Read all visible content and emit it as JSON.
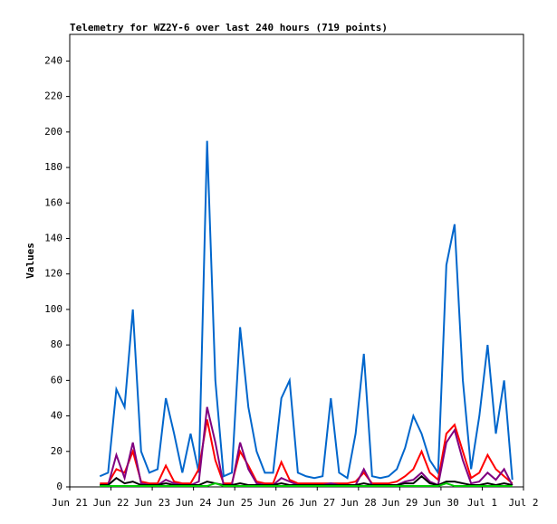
{
  "chart_data": {
    "type": "line",
    "title": "Telemetry for WZ2Y-6 over last 240 hours (719 points)",
    "y_label": "Values",
    "x": [
      0.73,
      0.93,
      1.13,
      1.33,
      1.53,
      1.73,
      1.93,
      2.13,
      2.33,
      2.53,
      2.73,
      2.93,
      3.13,
      3.33,
      3.53,
      3.73,
      3.93,
      4.13,
      4.33,
      4.53,
      4.73,
      4.93,
      5.13,
      5.33,
      5.53,
      5.73,
      5.93,
      6.13,
      6.33,
      6.53,
      6.73,
      6.93,
      7.13,
      7.33,
      7.53,
      7.73,
      7.93,
      8.13,
      8.33,
      8.53,
      8.73,
      8.93,
      9.13,
      9.33,
      9.53,
      9.73,
      9.93,
      10.13,
      10.33,
      10.53,
      10.73
    ],
    "series": [
      {
        "color": "#0066cc",
        "values": [
          6,
          8,
          55,
          45,
          100,
          20,
          8,
          10,
          50,
          30,
          8,
          30,
          8,
          195,
          60,
          6,
          8,
          90,
          45,
          20,
          8,
          8,
          50,
          60,
          8,
          6,
          5,
          6,
          50,
          8,
          5,
          30,
          75,
          6,
          5,
          6,
          10,
          22,
          40,
          30,
          15,
          8,
          125,
          148,
          60,
          10,
          40,
          80,
          30,
          60,
          4
        ]
      },
      {
        "color": "#ff0000",
        "values": [
          2,
          2,
          10,
          8,
          20,
          3,
          2,
          2,
          12,
          3,
          2,
          2,
          10,
          38,
          15,
          2,
          2,
          20,
          12,
          3,
          2,
          2,
          14,
          4,
          2,
          2,
          2,
          2,
          2,
          2,
          2,
          3,
          8,
          2,
          2,
          2,
          3,
          6,
          10,
          20,
          8,
          4,
          30,
          35,
          20,
          5,
          8,
          18,
          10,
          6,
          2
        ]
      },
      {
        "color": "#800080",
        "values": [
          1,
          1,
          18,
          5,
          25,
          2,
          1,
          1,
          4,
          2,
          1,
          1,
          3,
          45,
          25,
          1,
          1,
          25,
          10,
          2,
          1,
          1,
          5,
          3,
          1,
          1,
          1,
          1,
          2,
          1,
          1,
          1,
          10,
          1,
          1,
          1,
          1,
          3,
          4,
          8,
          3,
          1,
          25,
          32,
          15,
          2,
          3,
          8,
          4,
          10,
          1
        ]
      },
      {
        "color": "#000000",
        "values": [
          1,
          1,
          5,
          2,
          3,
          1,
          1,
          1,
          2,
          1,
          1,
          1,
          1,
          3,
          2,
          1,
          1,
          2,
          1,
          1,
          1,
          1,
          2,
          1,
          1,
          1,
          1,
          1,
          1,
          1,
          1,
          1,
          2,
          1,
          1,
          1,
          1,
          2,
          2,
          6,
          2,
          1,
          3,
          3,
          2,
          1,
          1,
          2,
          1,
          2,
          1
        ]
      },
      {
        "color": "#00cc00",
        "values": [
          0.5,
          0.5,
          0.5,
          0.5,
          0.5,
          0.5,
          0.5,
          0.5,
          0.5,
          0.5,
          0.5,
          0.5,
          0.5,
          0.5,
          2,
          0.5,
          0.5,
          0.5,
          0.5,
          0.5,
          0.5,
          0.5,
          0.5,
          0.5,
          0.5,
          0.5,
          0.5,
          0.5,
          0.5,
          0.5,
          0.5,
          0.5,
          0.5,
          0.5,
          0.5,
          0.5,
          0.5,
          0.5,
          0.5,
          0.5,
          0.5,
          0.5,
          2,
          0.5,
          0.5,
          0.5,
          0.5,
          0.5,
          0.5,
          0.5,
          0.5
        ]
      }
    ],
    "xlim": [
      0,
      11
    ],
    "xticks": [
      {
        "value": 0,
        "label": "Jun 21"
      },
      {
        "value": 1,
        "label": "Jun 22"
      },
      {
        "value": 2,
        "label": "Jun 23"
      },
      {
        "value": 3,
        "label": "Jun 24"
      },
      {
        "value": 4,
        "label": "Jun 25"
      },
      {
        "value": 5,
        "label": "Jun 26"
      },
      {
        "value": 6,
        "label": "Jun 27"
      },
      {
        "value": 7,
        "label": "Jun 28"
      },
      {
        "value": 8,
        "label": "Jun 29"
      },
      {
        "value": 9,
        "label": "Jun 30"
      },
      {
        "value": 10,
        "label": "Jul 1"
      },
      {
        "value": 11,
        "label": "Jul 2"
      }
    ],
    "ylim": [
      0,
      255
    ],
    "yticks": [
      0,
      20,
      40,
      60,
      80,
      100,
      120,
      140,
      160,
      180,
      200,
      220,
      240
    ]
  }
}
